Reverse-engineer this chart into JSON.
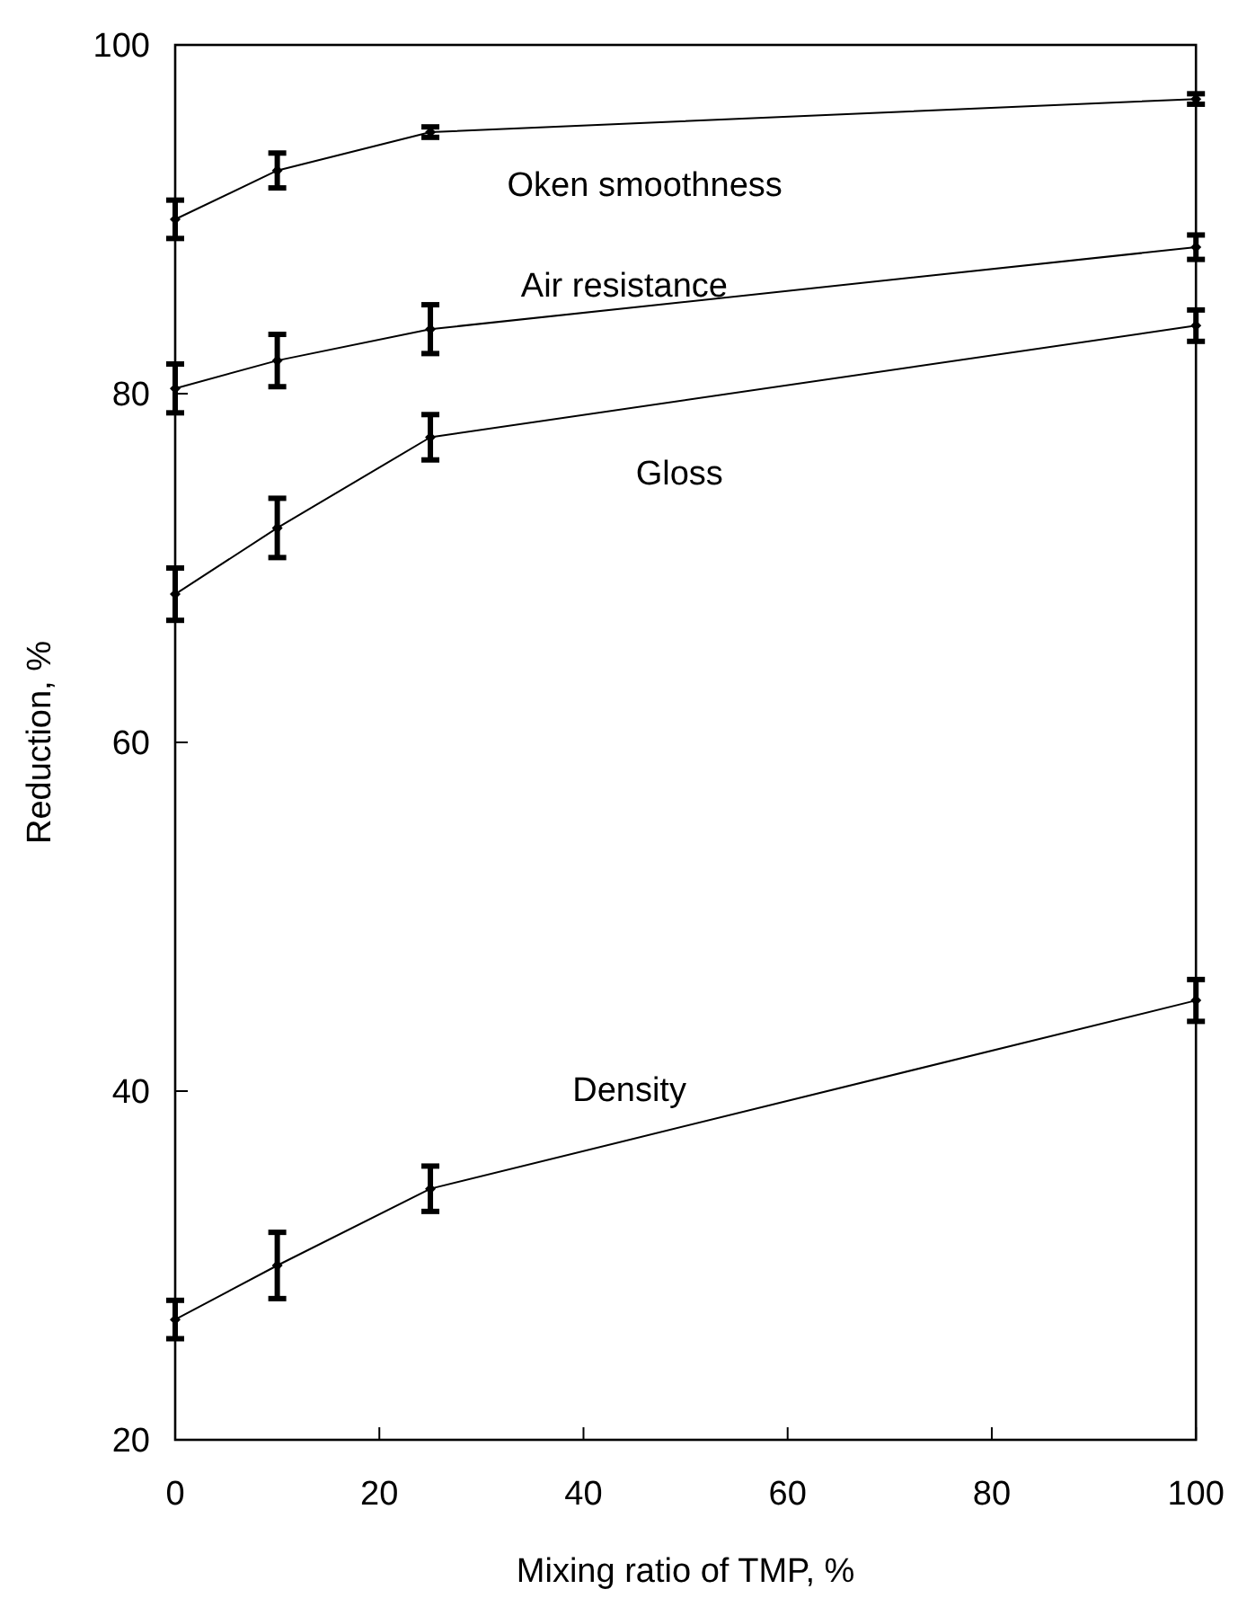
{
  "chart_data": {
    "type": "line",
    "xlabel": "Mixing ratio of TMP, %",
    "ylabel": "Reduction, %",
    "x": [
      0,
      10,
      25,
      100
    ],
    "xlim": [
      0,
      100
    ],
    "xticks": [
      0,
      20,
      40,
      60,
      80,
      100
    ],
    "ylim": [
      20,
      100
    ],
    "yticks": [
      20,
      40,
      60,
      80,
      100
    ],
    "grid": false,
    "marker": "diamond",
    "line_style": "solid",
    "series": [
      {
        "name": "Oken smoothness",
        "color": "#000000",
        "values": [
          90.0,
          92.8,
          95.0,
          96.9
        ],
        "errors": [
          1.1,
          1.0,
          0.3,
          0.3
        ]
      },
      {
        "name": "Air resistance",
        "color": "#000000",
        "values": [
          80.3,
          81.9,
          83.7,
          88.4
        ],
        "errors": [
          1.4,
          1.5,
          1.4,
          0.7
        ]
      },
      {
        "name": "Gloss",
        "color": "#000000",
        "values": [
          68.5,
          72.3,
          77.5,
          83.9
        ],
        "errors": [
          1.5,
          1.7,
          1.3,
          0.9
        ]
      },
      {
        "name": "Density",
        "color": "#000000",
        "values": [
          26.9,
          30.0,
          34.4,
          45.2
        ],
        "errors": [
          1.1,
          1.9,
          1.3,
          1.2
        ]
      }
    ]
  }
}
